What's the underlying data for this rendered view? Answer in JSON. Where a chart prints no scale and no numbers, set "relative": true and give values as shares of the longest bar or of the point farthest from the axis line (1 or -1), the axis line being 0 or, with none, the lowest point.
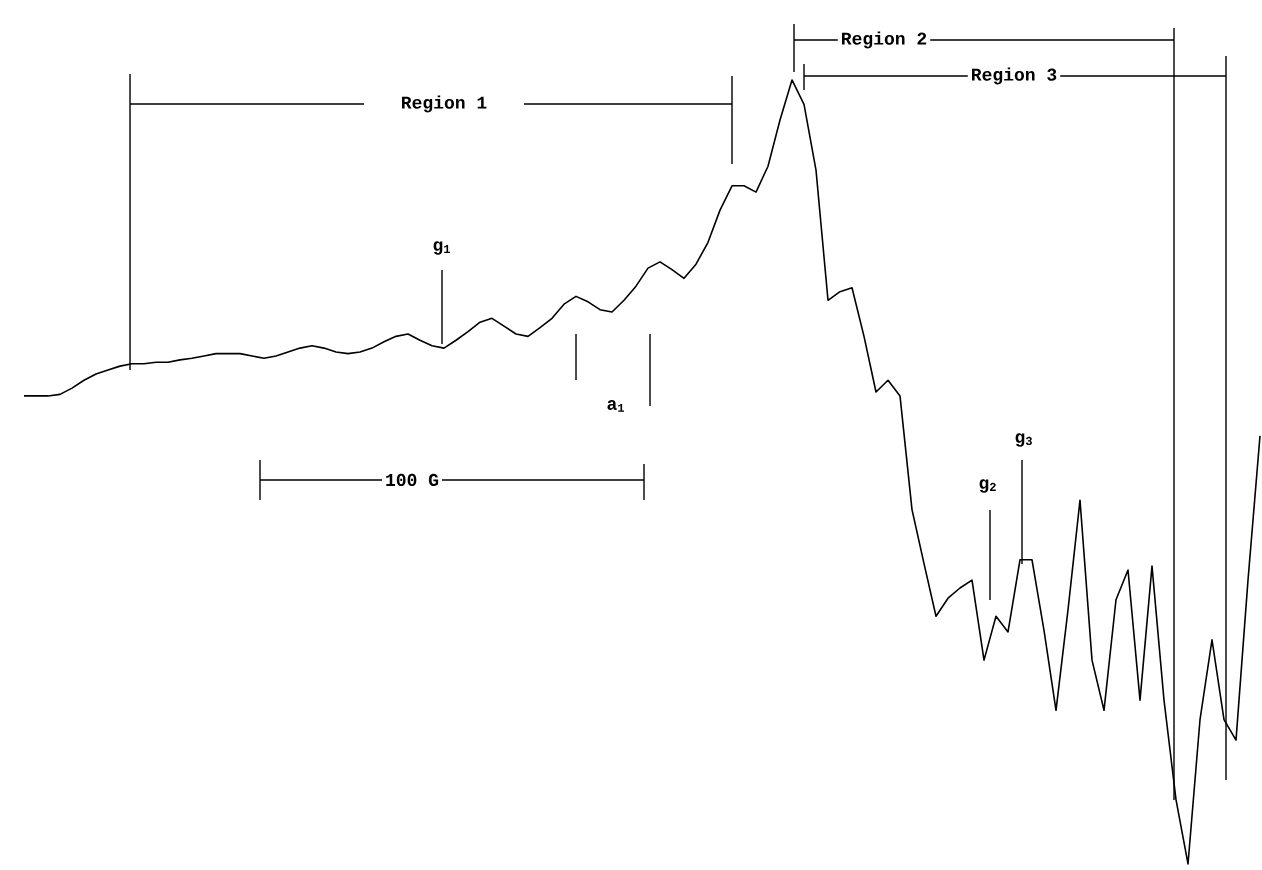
{
  "chart_data": {
    "type": "line",
    "relative": true,
    "color": "#000000",
    "categories": [
      null,
      null,
      null,
      null,
      null,
      null,
      null,
      null,
      null,
      null,
      null,
      null,
      null,
      null,
      null,
      null,
      null,
      null,
      null,
      null,
      null,
      null,
      null,
      null,
      null,
      null,
      null,
      null,
      null,
      null,
      null,
      null,
      null,
      null,
      null,
      null,
      null,
      null,
      null,
      null,
      null,
      null,
      null,
      null,
      null,
      null,
      null,
      null,
      null,
      null,
      null,
      null,
      null,
      null,
      null,
      null,
      null,
      null,
      null,
      null,
      null,
      null,
      null,
      null,
      null,
      null,
      null,
      null,
      null,
      null,
      null,
      null,
      null,
      null,
      null,
      null,
      null,
      null,
      null,
      null,
      null,
      null,
      null,
      null,
      null,
      null,
      null,
      null,
      null,
      null,
      null,
      null,
      null,
      null,
      null,
      null,
      null,
      null,
      null,
      null,
      null,
      null,
      null,
      null
    ],
    "values": [
      0.597,
      0.597,
      0.597,
      0.599,
      0.607,
      0.617,
      0.625,
      0.63,
      0.635,
      0.638,
      0.638,
      0.64,
      0.64,
      0.643,
      0.645,
      0.648,
      0.651,
      0.651,
      0.651,
      0.648,
      0.645,
      0.648,
      0.653,
      0.658,
      0.661,
      0.658,
      0.653,
      0.651,
      0.653,
      0.658,
      0.666,
      0.673,
      0.676,
      0.668,
      0.661,
      0.658,
      0.668,
      0.679,
      0.691,
      0.696,
      0.686,
      0.676,
      0.673,
      0.684,
      0.696,
      0.714,
      0.724,
      0.717,
      0.707,
      0.704,
      0.719,
      0.737,
      0.76,
      0.768,
      0.758,
      0.747,
      0.765,
      0.793,
      0.834,
      0.865,
      0.865,
      0.857,
      0.89,
      0.949,
      1,
      0.969,
      0.885,
      0.719,
      0.73,
      0.735,
      0.673,
      0.602,
      0.617,
      0.597,
      0.452,
      0.383,
      0.316,
      0.339,
      0.352,
      0.362,
      0.26,
      0.316,
      0.296,
      0.388,
      0.388,
      0.298,
      0.196,
      0.324,
      0.464,
      0.26,
      0.196,
      0.337,
      0.375,
      0.209,
      0.38,
      0.209,
      0.082,
      0,
      0.184,
      0.286,
      0.184,
      0.158,
      0.362,
      0.546
    ],
    "annotations": [
      "Region 1",
      "Region 2",
      "Region 3",
      "g$_{1}$",
      "g$_{2}$",
      "g$_{3}$",
      "a$_{1}$",
      "100 G"
    ]
  }
}
